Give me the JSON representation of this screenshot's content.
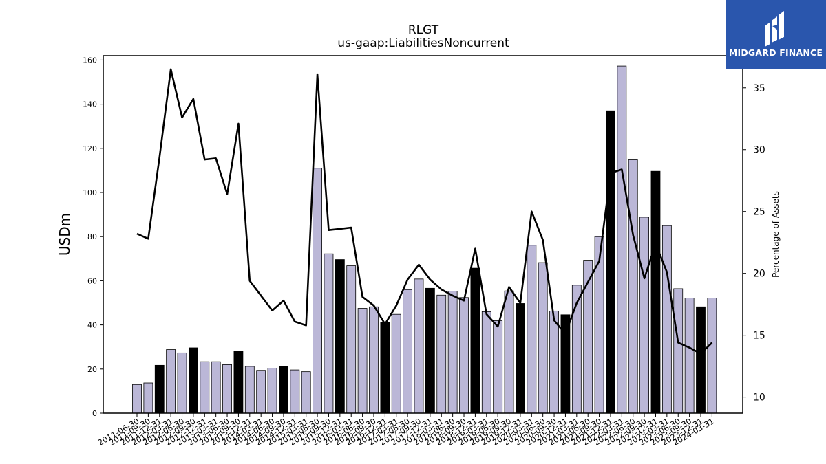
{
  "chart_data": {
    "type": "bar",
    "title": "RLGT",
    "subtitle": "us-gaap:LiabilitiesNoncurrent",
    "ylabel": "USDm",
    "y2label": "Percentage of Assets",
    "ylim": [
      0,
      162
    ],
    "y2lim": [
      8.7,
      37.6
    ],
    "yticks": [
      0,
      20,
      40,
      60,
      80,
      100,
      120,
      140,
      160
    ],
    "y2ticks": [
      10,
      15,
      20,
      25,
      30,
      35
    ],
    "grid": false,
    "categories": [
      "2011-06-30",
      "2011-09-30",
      "2011-12-31",
      "2012-03-31",
      "2012-06-30",
      "2012-09-30",
      "2012-12-31",
      "2013-03-31",
      "2013-06-30",
      "2013-09-30",
      "2013-12-31",
      "2014-03-31",
      "2014-06-30",
      "2014-09-30",
      "2014-12-31",
      "2015-03-31",
      "2015-06-30",
      "2015-09-30",
      "2015-12-31",
      "2016-03-31",
      "2016-06-30",
      "2016-09-30",
      "2016-12-31",
      "2017-03-31",
      "2017-06-30",
      "2017-09-30",
      "2017-12-31",
      "2018-03-31",
      "2018-06-30",
      "2018-09-30",
      "2018-12-31",
      "2019-03-31",
      "2019-06-30",
      "2019-09-30",
      "2019-12-31",
      "2020-03-31",
      "2020-06-30",
      "2020-09-30",
      "2020-12-31",
      "2021-03-31",
      "2021-06-30",
      "2021-09-30",
      "2021-12-31",
      "2022-03-31",
      "2022-06-30",
      "2022-09-30",
      "2022-12-31",
      "2023-03-31",
      "2023-06-30",
      "2023-09-30",
      "2023-12-31",
      "2024-03-31"
    ],
    "series": [
      {
        "kind": "bar",
        "axis": "left",
        "values": [
          13.0,
          13.7,
          21.7,
          28.8,
          27.3,
          29.6,
          23.3,
          23.3,
          22.0,
          28.2,
          21.2,
          19.4,
          20.4,
          21.1,
          19.6,
          18.8,
          111.0,
          72.2,
          69.6,
          66.8,
          47.5,
          48.2,
          41.0,
          44.8,
          56.0,
          60.8,
          56.6,
          53.5,
          55.3,
          52.4,
          65.7,
          46.0,
          41.9,
          55.4,
          49.7,
          76.1,
          68.2,
          46.3,
          44.6,
          58.0,
          69.3,
          80.0,
          137.0,
          157.3,
          114.8,
          88.8,
          109.6,
          85.0,
          56.4,
          52.2,
          48.2,
          52.2
        ],
        "highlight": [
          false,
          false,
          true,
          false,
          false,
          true,
          false,
          false,
          false,
          true,
          false,
          false,
          false,
          true,
          false,
          false,
          false,
          false,
          true,
          false,
          false,
          false,
          true,
          false,
          false,
          false,
          true,
          false,
          false,
          false,
          true,
          false,
          false,
          false,
          true,
          false,
          false,
          false,
          true,
          false,
          false,
          false,
          true,
          false,
          false,
          false,
          true,
          false,
          false,
          false,
          true,
          false
        ]
      },
      {
        "kind": "line",
        "axis": "right",
        "values": [
          23.2,
          22.8,
          29.4,
          36.5,
          32.6,
          34.1,
          29.2,
          29.3,
          26.4,
          32.1,
          19.4,
          18.2,
          17.0,
          17.8,
          16.1,
          15.8,
          36.1,
          23.5,
          23.6,
          23.7,
          18.1,
          17.4,
          15.9,
          17.4,
          19.5,
          20.7,
          19.5,
          18.7,
          18.2,
          17.8,
          22.0,
          16.7,
          15.7,
          18.9,
          17.6,
          25.0,
          22.7,
          16.2,
          15.1,
          17.6,
          19.3,
          21.0,
          28.1,
          28.4,
          23.1,
          19.6,
          22.4,
          20.1,
          14.4,
          14.0,
          13.5,
          14.4
        ]
      }
    ],
    "colors": {
      "bar": "#bbb7d7",
      "bar_highlight": "#000000",
      "line": "#000000",
      "logo_bg": "#2a56ad"
    }
  },
  "logo": {
    "text": "MIDGARD FINANCE",
    "icon": "midgard-logo-icon"
  }
}
